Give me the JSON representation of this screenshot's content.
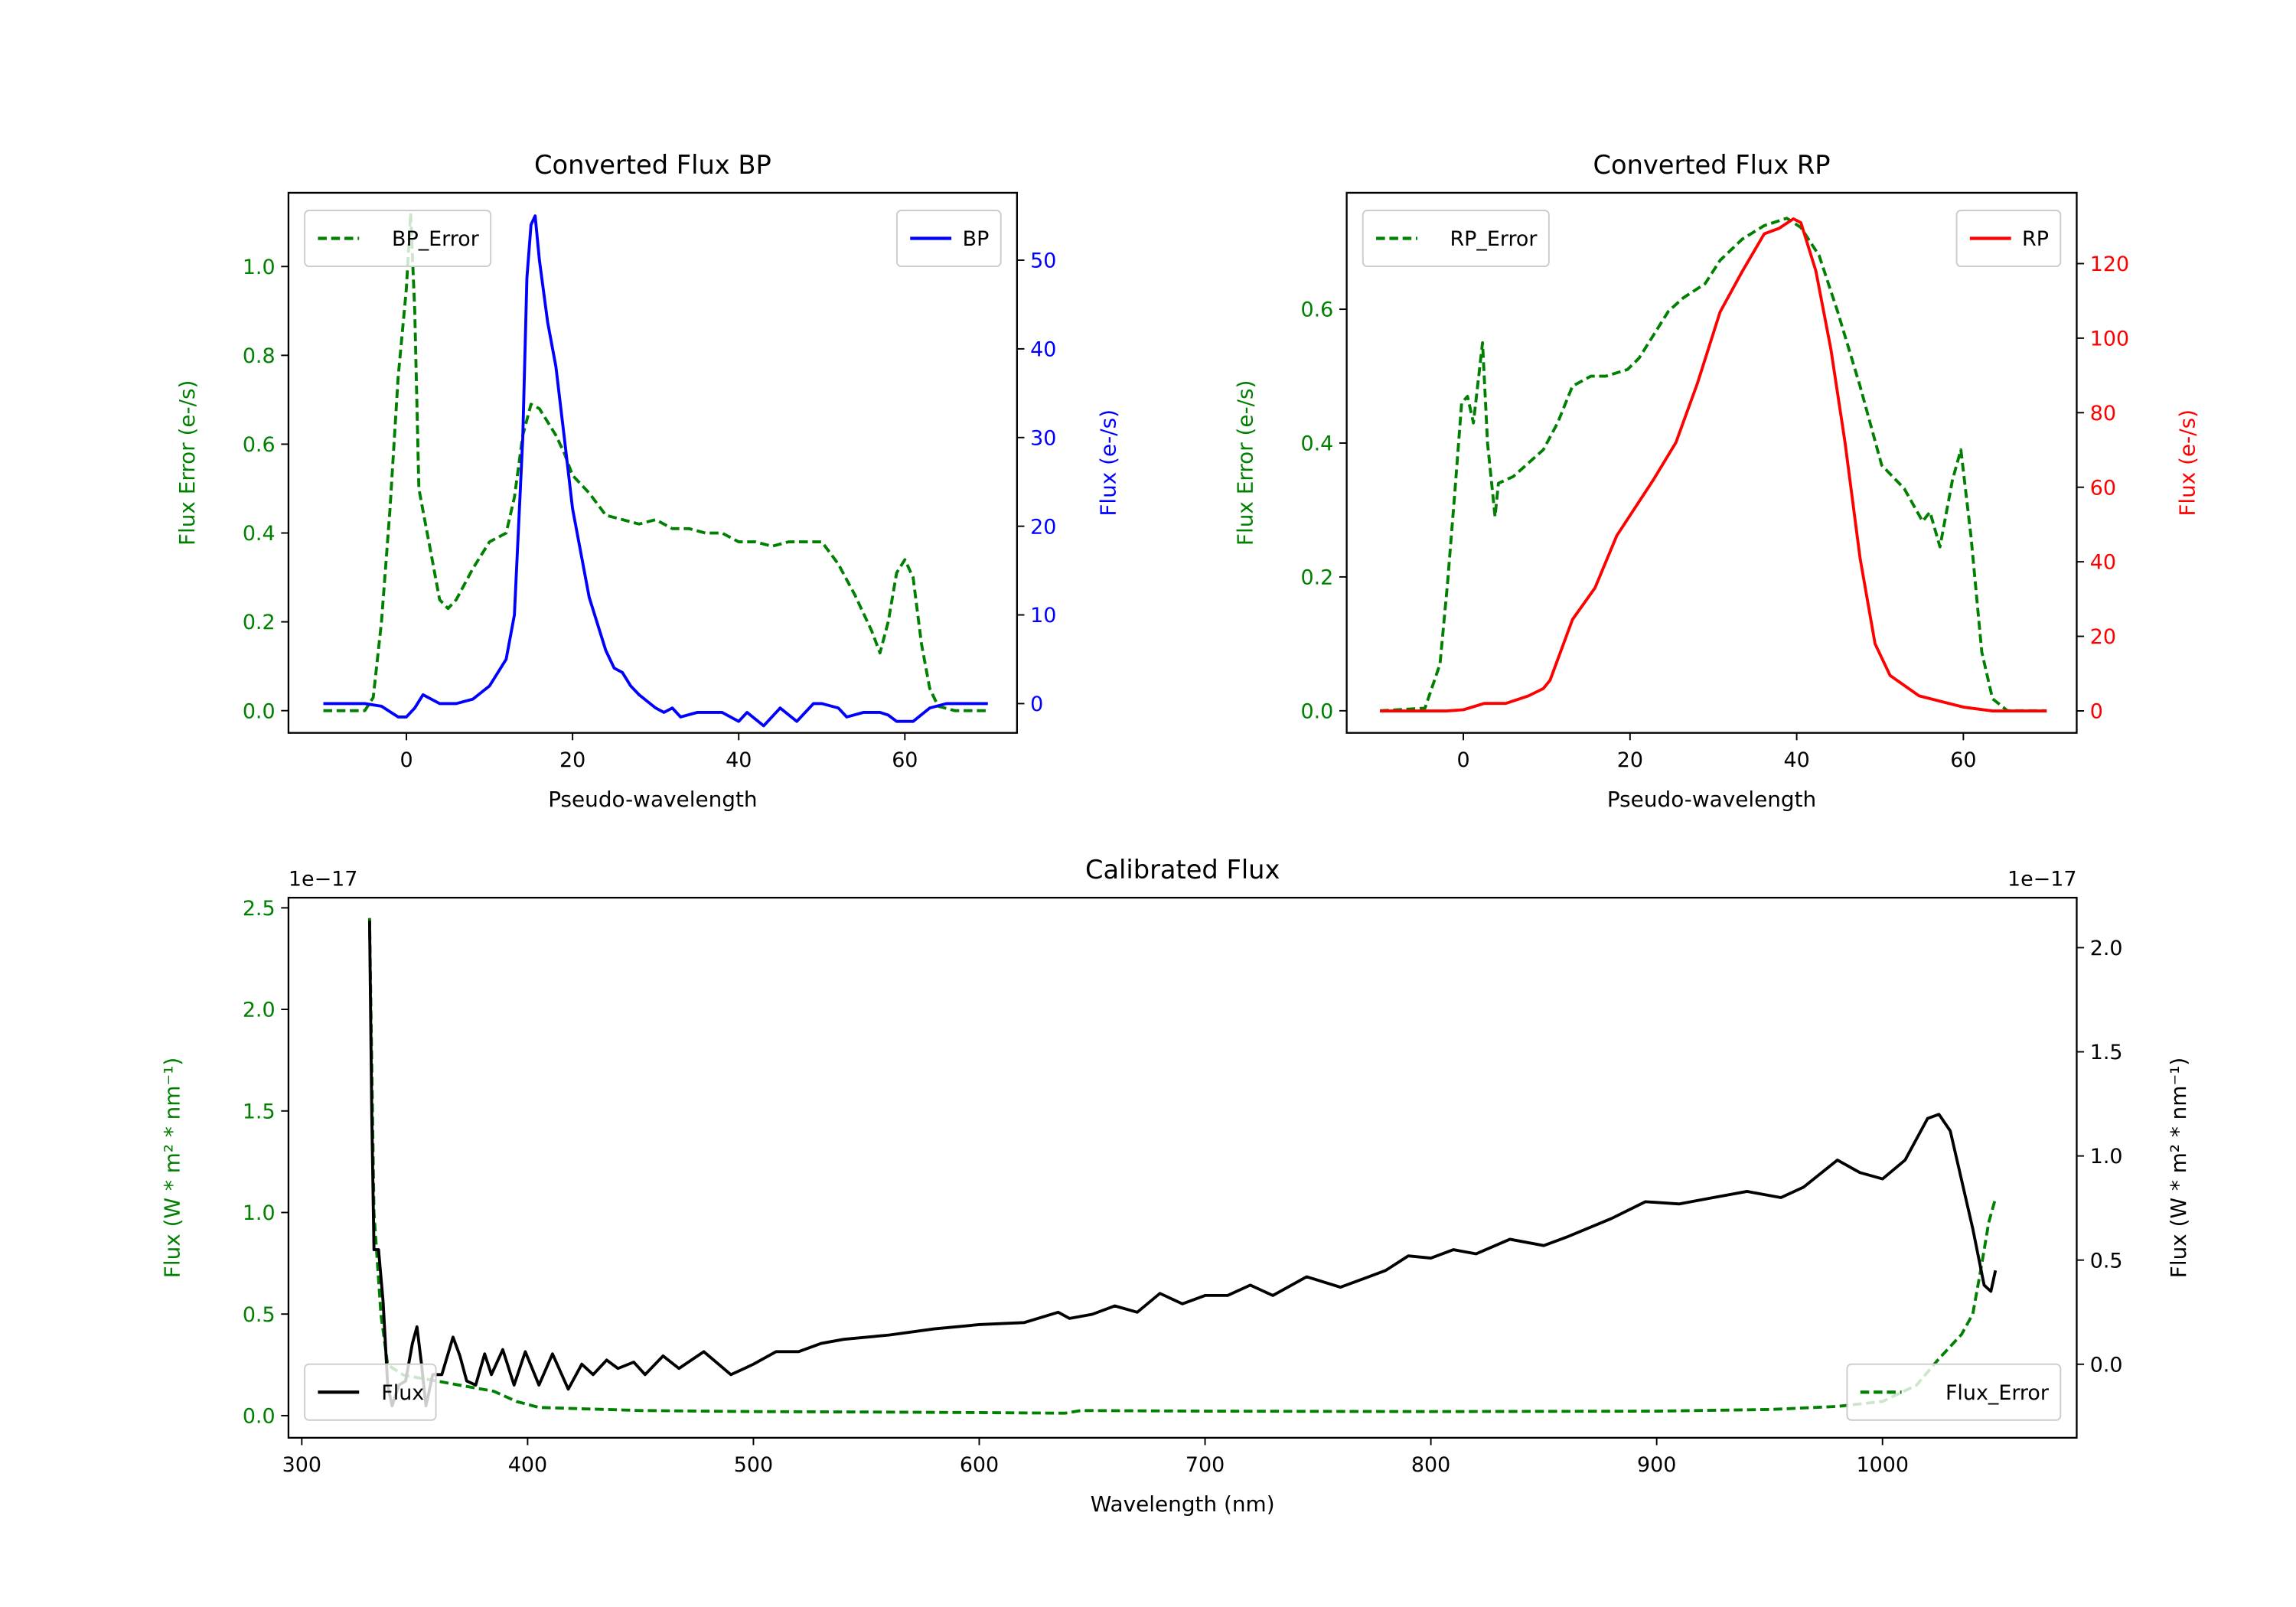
{
  "chart_data": [
    {
      "type": "line",
      "id": "bp",
      "title": "Converted Flux BP",
      "xlabel": "Pseudo-wavelength",
      "ylabel_left": "Flux Error (e-/s)",
      "ylabel_right": "Flux (e-/s)",
      "left_color": "#008000",
      "right_color": "#0000ff",
      "xlim": [
        -14.2,
        73.5
      ],
      "ylim_left": [
        -0.05,
        1.166
      ],
      "ylim_right": [
        -3.3,
        57.6
      ],
      "xticks": [
        {
          "v": 0,
          "t": "0"
        },
        {
          "v": 20,
          "t": "20"
        },
        {
          "v": 40,
          "t": "40"
        },
        {
          "v": 60,
          "t": "60"
        }
      ],
      "yticks_left": [
        {
          "v": 0,
          "t": "0.0"
        },
        {
          "v": 0.2,
          "t": "0.2"
        },
        {
          "v": 0.4,
          "t": "0.4"
        },
        {
          "v": 0.6,
          "t": "0.6"
        },
        {
          "v": 0.8,
          "t": "0.8"
        },
        {
          "v": 1.0,
          "t": "1.0"
        }
      ],
      "yticks_right": [
        {
          "v": 0,
          "t": "0"
        },
        {
          "v": 10,
          "t": "10"
        },
        {
          "v": 20,
          "t": "20"
        },
        {
          "v": 30,
          "t": "30"
        },
        {
          "v": 40,
          "t": "40"
        },
        {
          "v": 50,
          "t": "50"
        }
      ],
      "legends": [
        {
          "label": "BP_Error",
          "placement": "upper-left",
          "series": 0
        },
        {
          "label": "BP",
          "placement": "upper-right",
          "series": 1
        }
      ],
      "series": [
        {
          "name": "BP_Error",
          "axis": "left",
          "color": "#008000",
          "style": "dashed",
          "x": [
            -10,
            -5,
            -4,
            -3,
            -2,
            -1,
            0,
            0.5,
            1,
            1.5,
            2,
            3,
            4,
            5,
            6,
            8,
            10,
            12,
            13,
            14,
            15,
            16,
            17,
            18,
            19,
            20,
            22,
            24,
            26,
            28,
            30,
            32,
            34,
            36,
            38,
            40,
            42,
            44,
            46,
            48,
            50,
            52,
            54,
            56,
            57,
            58,
            59,
            60,
            61,
            62,
            63,
            64,
            66,
            70
          ],
          "y": [
            0,
            0,
            0.03,
            0.2,
            0.45,
            0.75,
            0.95,
            1.12,
            0.9,
            0.5,
            0.45,
            0.35,
            0.25,
            0.23,
            0.25,
            0.32,
            0.38,
            0.4,
            0.48,
            0.62,
            0.69,
            0.68,
            0.65,
            0.62,
            0.58,
            0.53,
            0.49,
            0.44,
            0.43,
            0.42,
            0.43,
            0.41,
            0.41,
            0.4,
            0.4,
            0.38,
            0.38,
            0.37,
            0.38,
            0.38,
            0.38,
            0.33,
            0.26,
            0.18,
            0.13,
            0.2,
            0.31,
            0.34,
            0.3,
            0.15,
            0.05,
            0.01,
            0,
            0
          ]
        },
        {
          "name": "BP",
          "axis": "right",
          "color": "#0000ff",
          "style": "solid",
          "x": [
            -10,
            -5,
            -3,
            -1,
            0,
            1,
            2,
            3,
            4,
            6,
            8,
            10,
            12,
            13,
            14,
            14.5,
            15,
            15.5,
            16,
            17,
            18,
            19,
            20,
            22,
            24,
            25,
            26,
            27,
            28,
            30,
            31,
            32,
            33,
            35,
            38,
            40,
            41,
            43,
            45,
            47,
            49,
            50,
            52,
            53,
            55,
            57,
            58,
            59,
            61,
            63,
            65,
            70
          ],
          "y": [
            0,
            0,
            -0.3,
            -1.5,
            -1.5,
            -0.5,
            1,
            0.5,
            0,
            0,
            0.5,
            2,
            5,
            10,
            30,
            48,
            54,
            55,
            50,
            43,
            38,
            30,
            22,
            12,
            6,
            4,
            3.5,
            2,
            1,
            -0.5,
            -1,
            -0.5,
            -1.5,
            -1,
            -1,
            -2,
            -1,
            -2.5,
            -0.5,
            -2,
            0,
            0,
            -0.5,
            -1.5,
            -1,
            -1,
            -1.3,
            -2,
            -2,
            -0.5,
            0,
            0
          ]
        }
      ]
    },
    {
      "type": "line",
      "id": "rp",
      "title": "Converted Flux RP",
      "xlabel": "Pseudo-wavelength",
      "ylabel_left": "Flux Error (e-/s)",
      "ylabel_right": "Flux (e-/s)",
      "left_color": "#008000",
      "right_color": "#ff0000",
      "xlim": [
        -14,
        73.6
      ],
      "ylim_left": [
        -0.033,
        0.774
      ],
      "ylim_right": [
        -5.9,
        139
      ],
      "xticks": [
        {
          "v": 0,
          "t": "0"
        },
        {
          "v": 20,
          "t": "20"
        },
        {
          "v": 40,
          "t": "40"
        },
        {
          "v": 60,
          "t": "60"
        }
      ],
      "yticks_left": [
        {
          "v": 0,
          "t": "0.0"
        },
        {
          "v": 0.2,
          "t": "0.2"
        },
        {
          "v": 0.4,
          "t": "0.4"
        },
        {
          "v": 0.6,
          "t": "0.6"
        }
      ],
      "yticks_right": [
        {
          "v": 0,
          "t": "0"
        },
        {
          "v": 20,
          "t": "20"
        },
        {
          "v": 40,
          "t": "40"
        },
        {
          "v": 60,
          "t": "60"
        },
        {
          "v": 80,
          "t": "80"
        },
        {
          "v": 100,
          "t": "100"
        },
        {
          "v": 120,
          "t": "120"
        }
      ],
      "legends": [
        {
          "label": "RP_Error",
          "placement": "upper-left",
          "series": 0
        },
        {
          "label": "RP",
          "placement": "upper-right",
          "series": 1
        }
      ],
      "series": [
        {
          "name": "RP_Error",
          "axis": "left",
          "color": "#008000",
          "style": "dashed",
          "x": [
            -10,
            -4.6,
            -2.8,
            -1.9,
            -1,
            -0.2,
            0.5,
            1.2,
            2.3,
            2.9,
            3.8,
            4.2,
            6,
            7.8,
            9.6,
            11.3,
            13.1,
            15.3,
            17.1,
            19.7,
            21.1,
            24.6,
            26.4,
            29,
            30.8,
            33.5,
            36.1,
            38.8,
            40.5,
            42.7,
            44.9,
            47.6,
            50.2,
            52.9,
            55.1,
            56,
            57.2,
            58.7,
            59.7,
            60.9,
            62.2,
            63.5,
            65.3,
            70
          ],
          "y": [
            0,
            0.004,
            0.07,
            0.19,
            0.33,
            0.46,
            0.47,
            0.43,
            0.55,
            0.4,
            0.29,
            0.34,
            0.35,
            0.37,
            0.39,
            0.43,
            0.485,
            0.5,
            0.5,
            0.51,
            0.527,
            0.597,
            0.617,
            0.638,
            0.673,
            0.705,
            0.725,
            0.736,
            0.722,
            0.68,
            0.597,
            0.485,
            0.367,
            0.332,
            0.283,
            0.297,
            0.245,
            0.345,
            0.39,
            0.262,
            0.088,
            0.018,
            0,
            0
          ]
        },
        {
          "name": "RP",
          "axis": "right",
          "color": "#ff0000",
          "style": "solid",
          "x": [
            -10,
            -2,
            0,
            2.5,
            5.1,
            7.8,
            9.6,
            10.4,
            13.1,
            15.8,
            18.4,
            22.8,
            25.5,
            28.1,
            30.8,
            33.5,
            36.1,
            37.9,
            39.6,
            40.5,
            42.3,
            44.1,
            45.8,
            47.6,
            49.4,
            51.2,
            54.7,
            56.5,
            60,
            63.5,
            70
          ],
          "y": [
            0,
            0,
            0.3,
            2,
            2,
            4,
            6,
            8.25,
            24.5,
            33,
            47,
            62,
            72,
            88,
            107,
            118,
            128,
            129.5,
            132,
            131,
            118,
            97,
            72,
            41,
            18,
            9.5,
            4,
            3,
            1,
            0,
            0
          ]
        }
      ]
    },
    {
      "type": "line",
      "id": "calibrated",
      "title": "Calibrated Flux",
      "xlabel": "Wavelength (nm)",
      "ylabel_left": "Flux (W * m² * nm⁻¹)",
      "ylabel_right": "Flux (W * m² * nm⁻¹)",
      "left_color": "#008000",
      "right_color": "#000000",
      "offset_left": "1e−17",
      "offset_right": "1e−17",
      "xlim": [
        294.1,
        1086
      ],
      "ylim_left": [
        -0.109,
        2.55
      ],
      "ylim_right": [
        -0.353,
        2.24
      ],
      "xticks": [
        {
          "v": 300,
          "t": "300"
        },
        {
          "v": 400,
          "t": "400"
        },
        {
          "v": 500,
          "t": "500"
        },
        {
          "v": 600,
          "t": "600"
        },
        {
          "v": 700,
          "t": "700"
        },
        {
          "v": 800,
          "t": "800"
        },
        {
          "v": 900,
          "t": "900"
        },
        {
          "v": 1000,
          "t": "1000"
        }
      ],
      "yticks_left": [
        {
          "v": 0,
          "t": "0.0"
        },
        {
          "v": 0.5,
          "t": "0.5"
        },
        {
          "v": 1.0,
          "t": "1.0"
        },
        {
          "v": 1.5,
          "t": "1.5"
        },
        {
          "v": 2.0,
          "t": "2.0"
        },
        {
          "v": 2.5,
          "t": "2.5"
        }
      ],
      "yticks_right": [
        {
          "v": 0,
          "t": "0.0"
        },
        {
          "v": 0.5,
          "t": "0.5"
        },
        {
          "v": 1.0,
          "t": "1.0"
        },
        {
          "v": 1.5,
          "t": "1.5"
        },
        {
          "v": 2.0,
          "t": "2.0"
        }
      ],
      "legends": [
        {
          "label": "Flux",
          "placement": "lower-left",
          "series": 1
        },
        {
          "label": "Flux_Error",
          "placement": "lower-right",
          "series": 0
        }
      ],
      "series": [
        {
          "name": "Flux_Error",
          "axis": "left",
          "color": "#008000",
          "style": "dashed",
          "x": [
            330,
            332,
            335,
            338,
            345,
            360,
            370,
            385,
            395,
            405,
            420,
            450,
            500,
            550,
            600,
            638,
            645,
            700,
            800,
            900,
            950,
            980,
            1000,
            1015,
            1025,
            1035,
            1040,
            1044,
            1047,
            1050
          ],
          "y": [
            2.45,
            1.0,
            0.5,
            0.25,
            0.2,
            0.17,
            0.15,
            0.12,
            0.07,
            0.04,
            0.035,
            0.025,
            0.02,
            0.018,
            0.015,
            0.012,
            0.025,
            0.022,
            0.02,
            0.022,
            0.03,
            0.045,
            0.07,
            0.15,
            0.28,
            0.4,
            0.5,
            0.75,
            0.95,
            1.07
          ]
        },
        {
          "name": "Flux",
          "axis": "right",
          "color": "#000000",
          "style": "solid",
          "x": [
            330,
            331,
            332,
            334,
            336,
            338,
            340,
            343,
            346,
            349,
            351,
            353,
            355,
            358,
            362,
            367,
            370,
            373,
            377,
            381,
            384,
            389,
            394,
            399,
            405,
            411,
            418,
            424,
            429,
            435,
            440,
            447,
            452,
            460,
            467,
            478,
            490,
            496,
            500,
            510,
            520,
            530,
            540,
            560,
            580,
            600,
            620,
            635,
            640,
            650,
            660,
            670,
            680,
            690,
            700,
            710,
            720,
            730,
            745,
            760,
            770,
            780,
            790,
            800,
            810,
            820,
            835,
            850,
            860,
            880,
            895,
            910,
            925,
            940,
            955,
            965,
            980,
            990,
            1000,
            1010,
            1020,
            1025,
            1030,
            1040,
            1045,
            1048,
            1050
          ],
          "y": [
            2.13,
            1.2,
            0.55,
            0.55,
            0.3,
            -0.1,
            -0.2,
            -0.1,
            -0.08,
            0.1,
            0.18,
            0.0,
            -0.2,
            -0.05,
            -0.05,
            0.13,
            0.04,
            -0.08,
            -0.1,
            0.05,
            -0.05,
            0.07,
            -0.1,
            0.06,
            -0.1,
            0.05,
            -0.12,
            0.0,
            -0.05,
            0.02,
            -0.02,
            0.01,
            -0.05,
            0.04,
            -0.02,
            0.06,
            -0.05,
            -0.02,
            0.0,
            0.06,
            0.06,
            0.1,
            0.12,
            0.14,
            0.17,
            0.19,
            0.2,
            0.25,
            0.22,
            0.24,
            0.28,
            0.25,
            0.34,
            0.29,
            0.33,
            0.33,
            0.38,
            0.33,
            0.42,
            0.37,
            0.41,
            0.45,
            0.52,
            0.51,
            0.55,
            0.53,
            0.6,
            0.57,
            0.61,
            0.7,
            0.78,
            0.77,
            0.8,
            0.83,
            0.8,
            0.85,
            0.98,
            0.92,
            0.89,
            0.98,
            1.18,
            1.2,
            1.12,
            0.65,
            0.38,
            0.35,
            0.45
          ]
        }
      ]
    }
  ]
}
